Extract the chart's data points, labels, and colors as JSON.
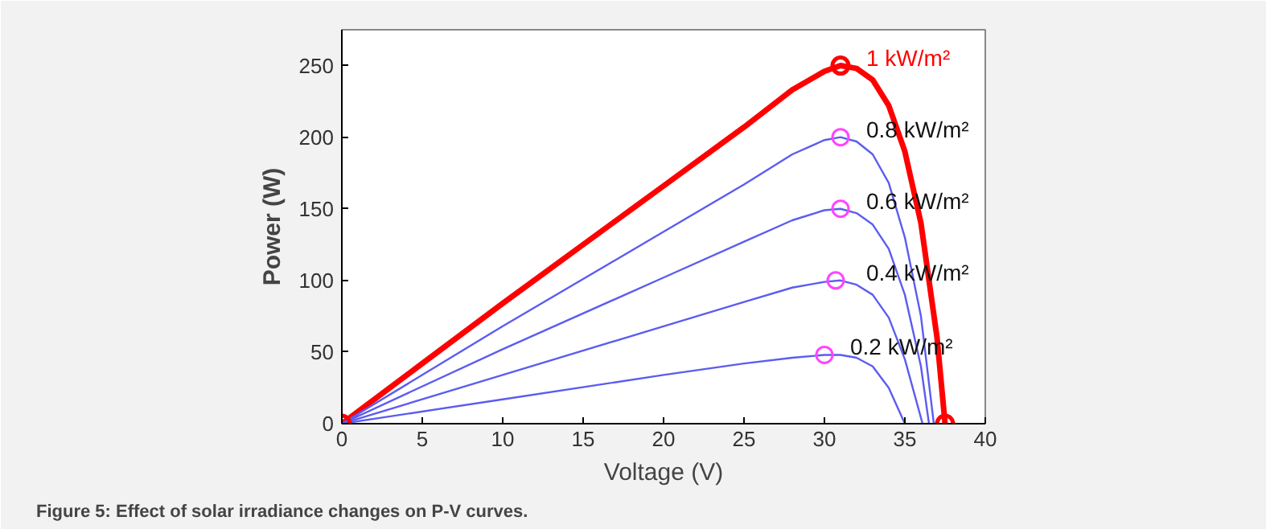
{
  "chart_data": {
    "type": "line",
    "xlabel": "Voltage (V)",
    "ylabel": "Power (W)",
    "xlim": [
      0,
      40
    ],
    "ylim": [
      0,
      275
    ],
    "xticks": [
      0,
      5,
      10,
      15,
      20,
      25,
      30,
      35,
      40
    ],
    "yticks": [
      0,
      50,
      100,
      150,
      200,
      250
    ],
    "grid": false,
    "marker": "none",
    "line_style": "solid",
    "series": [
      {
        "name": "1 kW/m²",
        "color": "#ff0000",
        "x": [
          0,
          5,
          10,
          15,
          20,
          25,
          28,
          30,
          31,
          32,
          33,
          34,
          35,
          36,
          37,
          37.5
        ],
        "values": [
          0,
          42,
          84,
          125,
          166,
          207,
          233,
          246,
          250,
          248,
          240,
          222,
          190,
          140,
          60,
          0
        ]
      },
      {
        "name": "0.8 kW/m²",
        "color": "#5c5cf0",
        "x": [
          0,
          10,
          20,
          25,
          28,
          30,
          31,
          32,
          33,
          34,
          35,
          36,
          36.8
        ],
        "values": [
          0,
          68,
          134,
          167,
          188,
          198,
          200,
          197,
          188,
          168,
          130,
          75,
          0
        ]
      },
      {
        "name": "0.6 kW/m²",
        "color": "#5c5cf0",
        "x": [
          0,
          10,
          20,
          25,
          28,
          30,
          31,
          32,
          33,
          34,
          35,
          36,
          36.5
        ],
        "values": [
          0,
          52,
          102,
          127,
          142,
          149,
          150,
          147,
          139,
          122,
          90,
          40,
          0
        ]
      },
      {
        "name": "0.4 kW/m²",
        "color": "#5c5cf0",
        "x": [
          0,
          10,
          20,
          25,
          28,
          30,
          31,
          32,
          33,
          34,
          35,
          36.1
        ],
        "values": [
          0,
          34,
          68,
          85,
          95,
          99,
          100,
          97,
          90,
          74,
          45,
          0
        ]
      },
      {
        "name": "0.2 kW/m²",
        "color": "#5c5cf0",
        "x": [
          0,
          10,
          20,
          25,
          28,
          30,
          31,
          32,
          33,
          34,
          35
        ],
        "values": [
          0,
          17,
          34,
          42,
          46,
          48,
          48,
          46,
          40,
          25,
          0
        ]
      },
      {
        "type": "scatter",
        "marker": "circle",
        "color": "#ff0000",
        "x": [
          0,
          31,
          37.5
        ],
        "values": [
          0,
          250,
          0
        ]
      },
      {
        "type": "scatter",
        "marker": "circle",
        "color": "#ff44ff",
        "x": [
          31,
          31,
          30.7,
          30
        ],
        "values": [
          200,
          150,
          100,
          48
        ]
      }
    ],
    "annotations": [
      "Figure 5: Effect of solar irradiance changes on P-V curves."
    ]
  }
}
